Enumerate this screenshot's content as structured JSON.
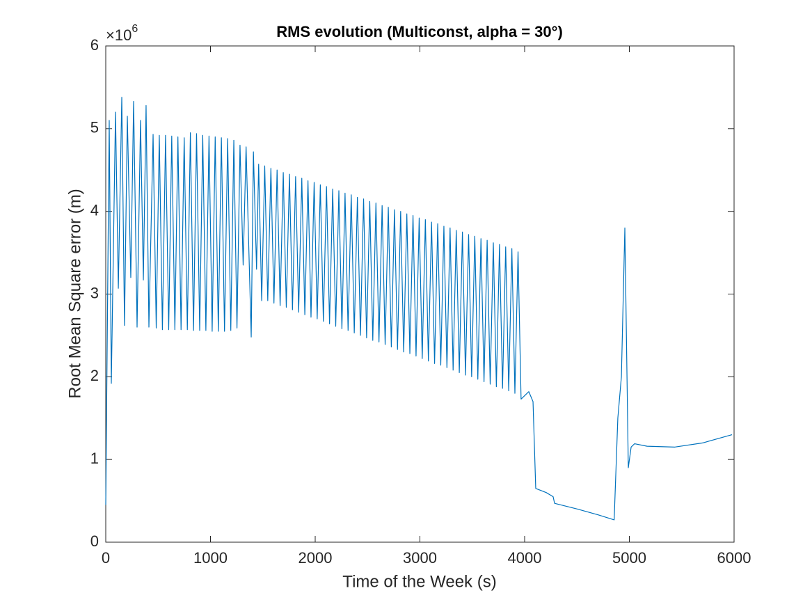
{
  "chart_data": {
    "type": "line",
    "title": "RMS evolution (Multiconst, alpha = 30°)",
    "xlabel": "Time of the Week (s)",
    "ylabel": "Root Mean Square error (m)",
    "y_multiplier": {
      "base": "×10",
      "exponent": "6"
    },
    "color": "#0072bd",
    "xlim": [
      0,
      6000
    ],
    "xticks": [
      0,
      1000,
      2000,
      3000,
      4000,
      5000,
      6000
    ],
    "ylim": [
      0,
      6
    ],
    "yticks": [
      0,
      1,
      2,
      3,
      4,
      5,
      6
    ],
    "x": [
      0,
      33,
      53,
      93,
      120,
      153,
      179,
      206,
      239,
      266,
      299,
      332,
      359,
      385,
      412,
      452,
      482,
      511,
      541,
      571,
      601,
      630,
      660,
      689,
      719,
      749,
      779,
      808,
      838,
      867,
      897,
      926,
      956,
      986,
      1016,
      1045,
      1075,
      1104,
      1134,
      1164,
      1194,
      1223,
      1253,
      1282,
      1312,
      1340,
      1389,
      1410,
      1440,
      1460,
      1489,
      1518,
      1547,
      1577,
      1606,
      1636,
      1665,
      1695,
      1724,
      1754,
      1783,
      1813,
      1842,
      1872,
      1901,
      1931,
      1960,
      1990,
      2019,
      2049,
      2078,
      2108,
      2137,
      2167,
      2196,
      2226,
      2255,
      2285,
      2314,
      2344,
      2373,
      2403,
      2432,
      2462,
      2491,
      2521,
      2550,
      2580,
      2609,
      2639,
      2668,
      2698,
      2727,
      2757,
      2786,
      2816,
      2845,
      2875,
      2904,
      2934,
      2963,
      2993,
      3022,
      3052,
      3081,
      3111,
      3140,
      3170,
      3199,
      3229,
      3258,
      3288,
      3317,
      3347,
      3376,
      3406,
      3435,
      3465,
      3494,
      3524,
      3553,
      3583,
      3612,
      3642,
      3671,
      3701,
      3730,
      3760,
      3789,
      3819,
      3848,
      3878,
      3907,
      3937,
      3966,
      4040,
      4080,
      4106,
      4206,
      4272,
      4286,
      4505,
      4704,
      4855,
      4890,
      4924,
      4957,
      4990,
      5017,
      5050,
      5169,
      5435,
      5700,
      5980
    ],
    "values": [
      0.45,
      5.1,
      1.92,
      5.2,
      3.07,
      5.38,
      2.62,
      5.15,
      3.2,
      5.33,
      2.6,
      5.1,
      3.17,
      5.28,
      2.6,
      4.93,
      2.59,
      4.92,
      2.57,
      4.92,
      2.57,
      4.91,
      2.57,
      4.9,
      2.57,
      4.89,
      2.57,
      4.95,
      2.56,
      4.94,
      2.56,
      4.92,
      2.56,
      4.91,
      2.55,
      4.9,
      2.55,
      4.89,
      2.55,
      4.88,
      2.56,
      4.86,
      2.59,
      4.8,
      3.35,
      4.78,
      2.48,
      4.72,
      3.3,
      4.57,
      2.92,
      4.55,
      2.92,
      4.52,
      2.89,
      4.5,
      2.86,
      4.47,
      2.84,
      4.45,
      2.81,
      4.42,
      2.78,
      4.4,
      2.75,
      4.37,
      2.72,
      4.35,
      2.7,
      4.32,
      2.67,
      4.3,
      2.64,
      4.27,
      2.61,
      4.25,
      2.58,
      4.22,
      2.56,
      4.2,
      2.53,
      4.17,
      2.5,
      4.15,
      2.47,
      4.12,
      2.44,
      4.1,
      2.42,
      4.07,
      2.39,
      4.05,
      2.36,
      4.02,
      2.33,
      4.0,
      2.3,
      3.97,
      2.28,
      3.95,
      2.25,
      3.92,
      2.22,
      3.9,
      2.19,
      3.87,
      2.16,
      3.85,
      2.14,
      3.82,
      2.11,
      3.8,
      2.08,
      3.77,
      2.05,
      3.75,
      2.02,
      3.72,
      2.0,
      3.7,
      1.97,
      3.67,
      1.94,
      3.65,
      1.91,
      3.62,
      1.88,
      3.6,
      1.86,
      3.57,
      1.83,
      3.55,
      1.8,
      3.51,
      1.73,
      1.82,
      1.7,
      0.65,
      0.6,
      0.55,
      0.47,
      0.4,
      0.33,
      0.27,
      1.5,
      2.0,
      3.8,
      0.9,
      1.15,
      1.19,
      1.16,
      1.15,
      1.2,
      1.3
    ]
  }
}
